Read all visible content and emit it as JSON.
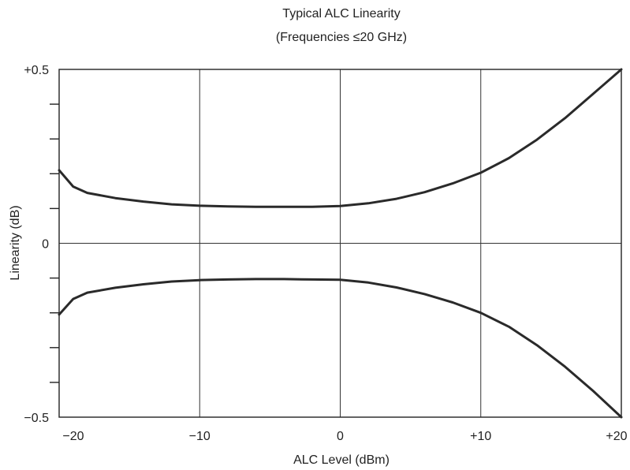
{
  "chart_data": {
    "type": "line",
    "title": "Typical ALC Linearity",
    "subtitle": "(Frequencies ≤20 GHz)",
    "xlabel": "ALC Level (dBm)",
    "ylabel": "Linearity (dB)",
    "xlim": [
      -20,
      20
    ],
    "ylim": [
      -0.5,
      0.5
    ],
    "grid": true,
    "x_ticks": [
      {
        "value": -20,
        "label": "−20"
      },
      {
        "value": -10,
        "label": "−10"
      },
      {
        "value": 0,
        "label": "0"
      },
      {
        "value": 10,
        "label": "+10"
      },
      {
        "value": 20,
        "label": "+20"
      }
    ],
    "y_tick_labels": [
      {
        "value": 0.5,
        "label": "+0.5"
      },
      {
        "value": 0,
        "label": "0"
      },
      {
        "value": -0.5,
        "label": "−0.5"
      }
    ],
    "y_minor_ticks": [
      0.4,
      0.3,
      0.2,
      0.1,
      -0.1,
      -0.2,
      -0.3,
      -0.4
    ],
    "series": [
      {
        "x": [
          -20,
          -19,
          -18,
          -16,
          -14,
          -12,
          -10,
          -8,
          -6,
          -4,
          -2,
          0,
          2,
          4,
          6,
          8,
          10,
          12,
          14,
          16,
          18,
          20
        ],
        "y": [
          0.21,
          0.163,
          0.145,
          0.13,
          0.12,
          0.112,
          0.108,
          0.106,
          0.105,
          0.105,
          0.105,
          0.107,
          0.115,
          0.128,
          0.147,
          0.172,
          0.203,
          0.245,
          0.298,
          0.36,
          0.43,
          0.5
        ]
      },
      {
        "x": [
          -20,
          -19,
          -18,
          -16,
          -14,
          -12,
          -10,
          -8,
          -6,
          -4,
          -2,
          0,
          2,
          4,
          6,
          8,
          10,
          12,
          14,
          16,
          18,
          20
        ],
        "y": [
          -0.205,
          -0.16,
          -0.142,
          -0.128,
          -0.118,
          -0.11,
          -0.106,
          -0.104,
          -0.103,
          -0.103,
          -0.104,
          -0.105,
          -0.113,
          -0.127,
          -0.146,
          -0.17,
          -0.2,
          -0.24,
          -0.293,
          -0.355,
          -0.425,
          -0.5
        ]
      }
    ]
  }
}
